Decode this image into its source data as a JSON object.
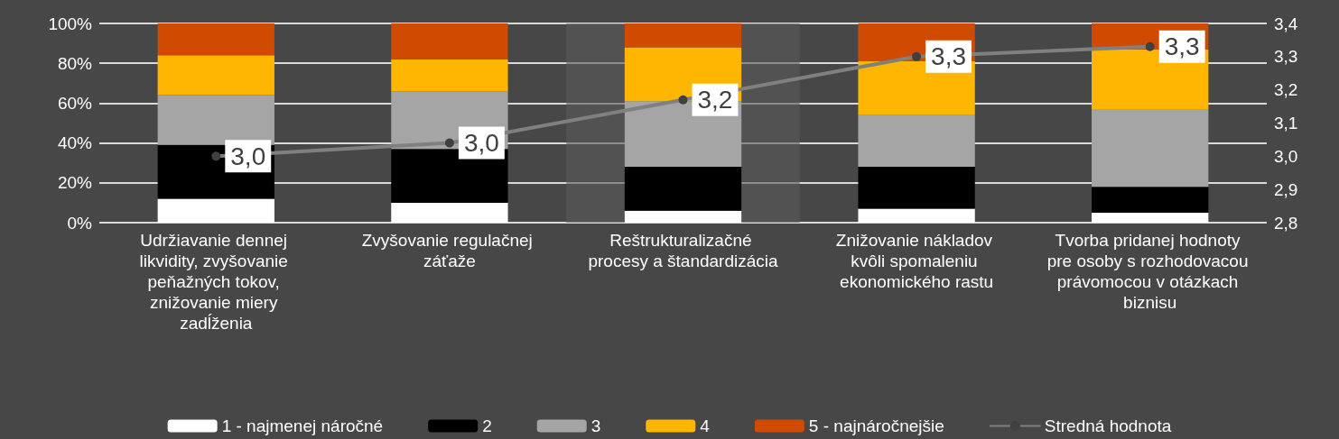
{
  "chart_data": {
    "type": "bar",
    "stacked": true,
    "categories": [
      "Udržiavanie dennej likvidity, zvyšovanie peňažných tokov, znižovanie miery zadĺženia",
      "Zvyšovanie regulačnej záťaže",
      "Reštrukturalizačné procesy a štandardizácia",
      "Znižovanie nákladov kvôli spomaleniu ekonomického rastu",
      "Tvorba pridanej hodnoty pre osoby s rozhodovacou právomocou v otázkach biznisu"
    ],
    "series": [
      {
        "name": "1 - najmenej náročné",
        "color": "#ffffff",
        "values": [
          12,
          10,
          6,
          7,
          5
        ]
      },
      {
        "name": "2",
        "color": "#000000",
        "values": [
          27,
          27,
          22,
          21,
          13
        ]
      },
      {
        "name": "3",
        "color": "#a5a5a5",
        "values": [
          25,
          29,
          33,
          26,
          39
        ]
      },
      {
        "name": "4",
        "color": "#ffb600",
        "values": [
          20,
          16,
          27,
          27,
          30
        ]
      },
      {
        "name": "5 - najnáročnejšie",
        "color": "#d04a02",
        "values": [
          16,
          18,
          12,
          19,
          13
        ]
      },
      {
        "name": "Stredná hodnota",
        "type": "line",
        "axis": "y2",
        "color": "#808080",
        "marker": "circle",
        "values": [
          3.0,
          3.04,
          3.17,
          3.3,
          3.33
        ],
        "value_labels": [
          "3,0",
          "3,0",
          "3,2",
          "3,3",
          "3,3"
        ]
      }
    ],
    "ylim": [
      0,
      100
    ],
    "yticks": [
      {
        "value": 0,
        "label": "0%"
      },
      {
        "value": 20,
        "label": "20%"
      },
      {
        "value": 40,
        "label": "40%"
      },
      {
        "value": 60,
        "label": "60%"
      },
      {
        "value": 80,
        "label": "80%"
      },
      {
        "value": 100,
        "label": "100%"
      }
    ],
    "y2lim": [
      2.8,
      3.4
    ],
    "y2ticks": [
      {
        "value": 2.8,
        "label": "2,8"
      },
      {
        "value": 2.9,
        "label": "2,9"
      },
      {
        "value": 3.0,
        "label": "3,0"
      },
      {
        "value": 3.1,
        "label": "3,1"
      },
      {
        "value": 3.2,
        "label": "3,2"
      },
      {
        "value": 3.3,
        "label": "3,3"
      },
      {
        "value": 3.4,
        "label": "3,4"
      }
    ],
    "bands": [
      {
        "axis": "x",
        "from": "Reštrukturalizačné procesy a štandardizácia",
        "to": "Reštrukturalizačné procesy a štandardizácia",
        "color": "#5a5a5a"
      }
    ],
    "grid": "y",
    "legend": "bottom"
  }
}
